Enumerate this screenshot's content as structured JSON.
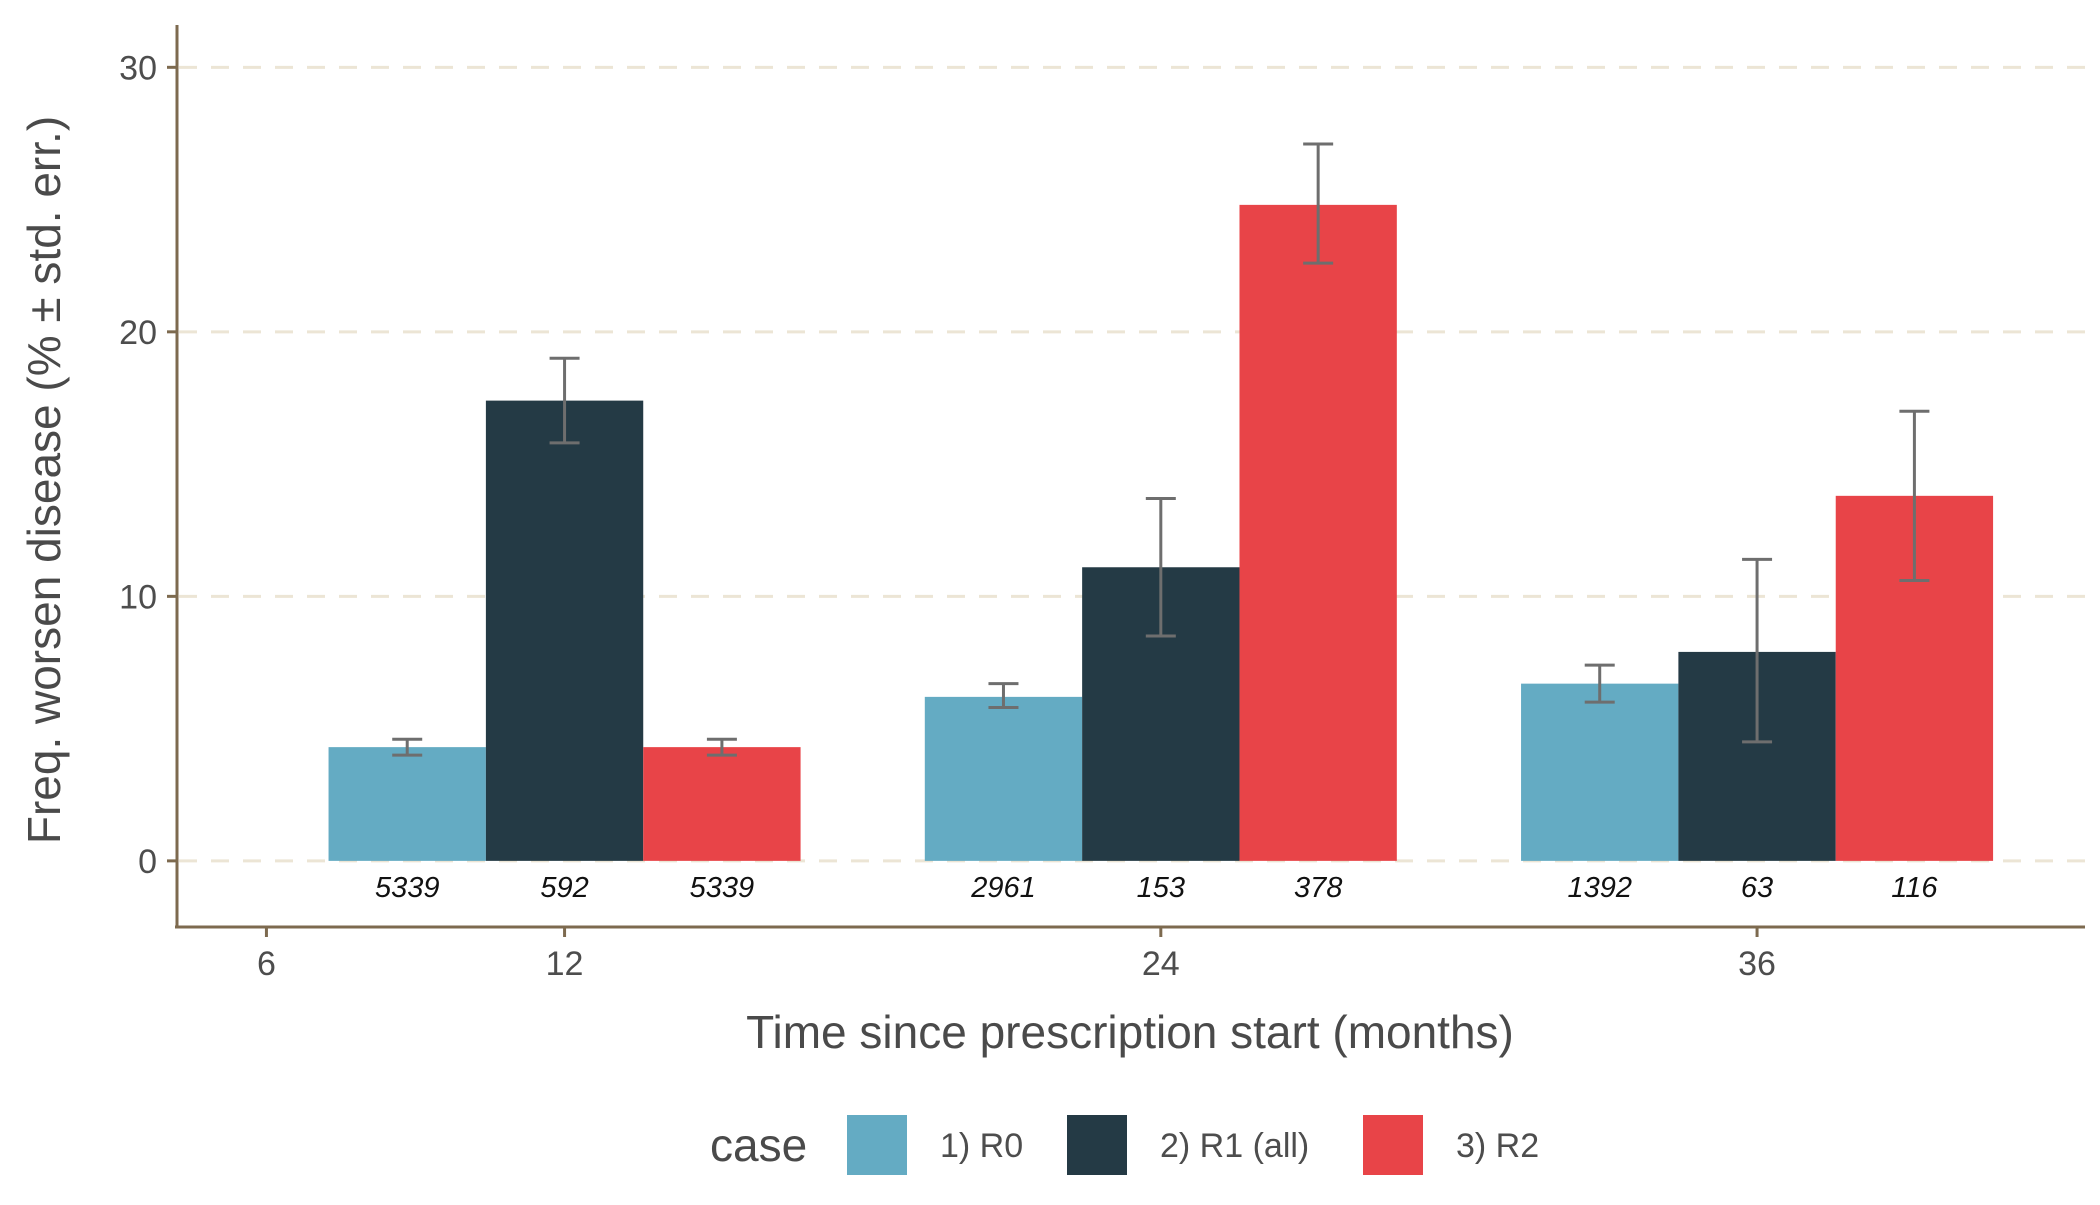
{
  "chart_data": {
    "type": "bar",
    "title": "",
    "xlabel": "Time since prescription start (months)",
    "ylabel": "Freq. worsen disease (% ± std. err.)",
    "x_ticks": [
      {
        "label": "6",
        "value": 6
      },
      {
        "label": "12",
        "value": 12
      },
      {
        "label": "24",
        "value": 24
      },
      {
        "label": "36",
        "value": 36
      }
    ],
    "x_range": [
      4.2,
      42.6
    ],
    "y_ticks": [
      0,
      10,
      20,
      30
    ],
    "y_tick_labels": [
      "0",
      "10",
      "20",
      "30"
    ],
    "ylim": [
      -2.5,
      31.6
    ],
    "grid": "horizontal-dashed",
    "categories": [
      "12",
      "24",
      "36"
    ],
    "category_x": [
      12,
      24,
      36
    ],
    "legend": {
      "title": "case",
      "position": "bottom"
    },
    "series": [
      {
        "name": "1) R0",
        "color": "#64abc3",
        "values": [
          4.3,
          6.2,
          6.7
        ],
        "err_low": [
          4.0,
          5.8,
          6.0
        ],
        "err_high": [
          4.6,
          6.7,
          7.4
        ],
        "n_labels": [
          "5339",
          "2961",
          "1392"
        ]
      },
      {
        "name": "2) R1 (all)",
        "color": "#243a45",
        "values": [
          17.4,
          11.1,
          7.9
        ],
        "err_low": [
          15.8,
          8.5,
          4.5
        ],
        "err_high": [
          19.0,
          13.7,
          11.4
        ],
        "n_labels": [
          "592",
          "153",
          "63"
        ]
      },
      {
        "name": "3) R2",
        "color": "#e84448",
        "values": [
          4.3,
          24.8,
          13.8
        ],
        "err_low": [
          4.0,
          22.6,
          10.6
        ],
        "err_high": [
          4.6,
          27.1,
          17.0
        ],
        "n_labels": [
          "5339",
          "378",
          "116"
        ]
      }
    ],
    "colors": {
      "axis": "#7d6a4f",
      "grid": "#ece5d5",
      "error_bar": "#6e6e6e",
      "tick_text": "#4d4d4d",
      "title_text": "#4a4a4a"
    }
  }
}
